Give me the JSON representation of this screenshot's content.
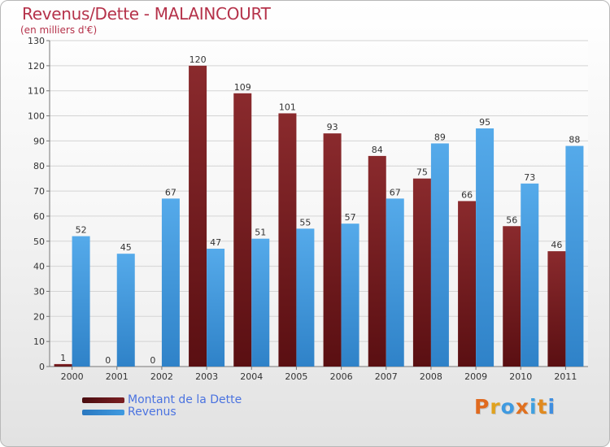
{
  "header": {
    "title": "Revenus/Dette - MALAINCOURT",
    "subtitle": "(en milliers d'€)"
  },
  "colors": {
    "dette": "#7a1f22",
    "revenus": "#3f9ae0",
    "title": "#b5324a",
    "legend_text": "#4b73e0"
  },
  "legend": {
    "dette_label": "Montant de la Dette",
    "revenus_label": "Revenus"
  },
  "logo": {
    "text": "Proxiti",
    "letter_colors": [
      "#e06a1f",
      "#e0a21f",
      "#3f9ae0",
      "#e0701f",
      "#3fa0e0",
      "#e08a1f",
      "#3f8ee0"
    ]
  },
  "chart_data": {
    "type": "bar",
    "title": "Revenus/Dette - MALAINCOURT",
    "ylabel": "(en milliers d'€)",
    "xlabel": "",
    "categories": [
      "2000",
      "2001",
      "2002",
      "2003",
      "2004",
      "2005",
      "2006",
      "2007",
      "2008",
      "2009",
      "2010",
      "2011"
    ],
    "series": [
      {
        "name": "Montant de la Dette",
        "values": [
          1,
          0,
          0,
          120,
          109,
          101,
          93,
          84,
          75,
          66,
          56,
          46
        ]
      },
      {
        "name": "Revenus",
        "values": [
          52,
          45,
          67,
          47,
          51,
          55,
          57,
          67,
          89,
          95,
          73,
          88
        ]
      }
    ],
    "ylim": [
      0,
      130
    ],
    "yticks": [
      0,
      10,
      20,
      30,
      40,
      50,
      60,
      70,
      80,
      90,
      100,
      110,
      120,
      130
    ],
    "grid": true,
    "legend_position": "bottom-left"
  }
}
